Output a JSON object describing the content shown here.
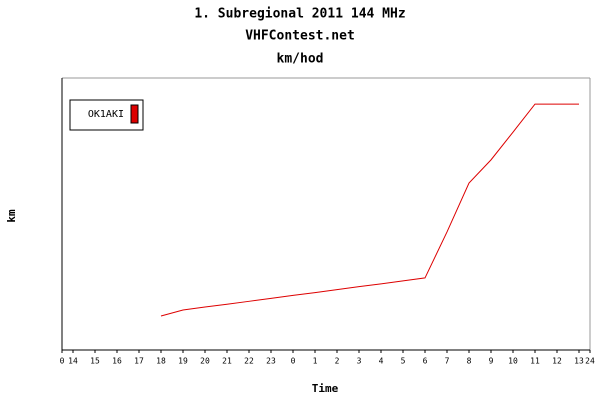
{
  "chart_data": {
    "type": "line",
    "title": "1. Subregional 2011 144 MHz",
    "subtitle": "VHFContest.net",
    "unit_title": "km/hod",
    "x_label": "Time",
    "y_label": "km",
    "xlim": [
      0,
      24
    ],
    "xticks": [
      0,
      {
        "value": 0.5,
        "label": "14"
      },
      {
        "value": 1.5,
        "label": "15"
      },
      {
        "value": 2.5,
        "label": "16"
      },
      {
        "value": 3.5,
        "label": "17"
      },
      {
        "value": 4.5,
        "label": "18"
      },
      {
        "value": 5.5,
        "label": "19"
      },
      {
        "value": 6.5,
        "label": "20"
      },
      {
        "value": 7.5,
        "label": "21"
      },
      {
        "value": 8.5,
        "label": "22"
      },
      {
        "value": 9.5,
        "label": "23"
      },
      {
        "value": 10.5,
        "label": "0"
      },
      {
        "value": 11.5,
        "label": "1"
      },
      {
        "value": 12.5,
        "label": "2"
      },
      {
        "value": 13.5,
        "label": "3"
      },
      {
        "value": 14.5,
        "label": "4"
      },
      {
        "value": 15.5,
        "label": "5"
      },
      {
        "value": 16.5,
        "label": "6"
      },
      {
        "value": 17.5,
        "label": "7"
      },
      {
        "value": 18.5,
        "label": "8"
      },
      {
        "value": 19.5,
        "label": "9"
      },
      {
        "value": 20.5,
        "label": "10"
      },
      {
        "value": 21.5,
        "label": "11"
      },
      {
        "value": 22.5,
        "label": "12"
      },
      {
        "value": 23.5,
        "label": "13"
      },
      24
    ],
    "ylim": [
      0,
      100
    ],
    "x": [
      4.5,
      5.5,
      6.5,
      7.5,
      8.5,
      9.5,
      10.5,
      11.5,
      12.5,
      13.5,
      14.5,
      15.5,
      16.5,
      17.5,
      18.5,
      19.5,
      20.5,
      21.5,
      22.5,
      23.5
    ],
    "series": [
      {
        "name": "OK1AKI",
        "color": "#dd0000",
        "values": [
          12.5,
          14.7,
          15.8,
          16.8,
          17.9,
          19.0,
          20.1,
          21.1,
          22.2,
          23.3,
          24.3,
          25.4,
          26.5,
          43.4,
          61.4,
          69.9,
          80.1,
          90.4,
          90.4,
          90.4
        ]
      }
    ]
  }
}
